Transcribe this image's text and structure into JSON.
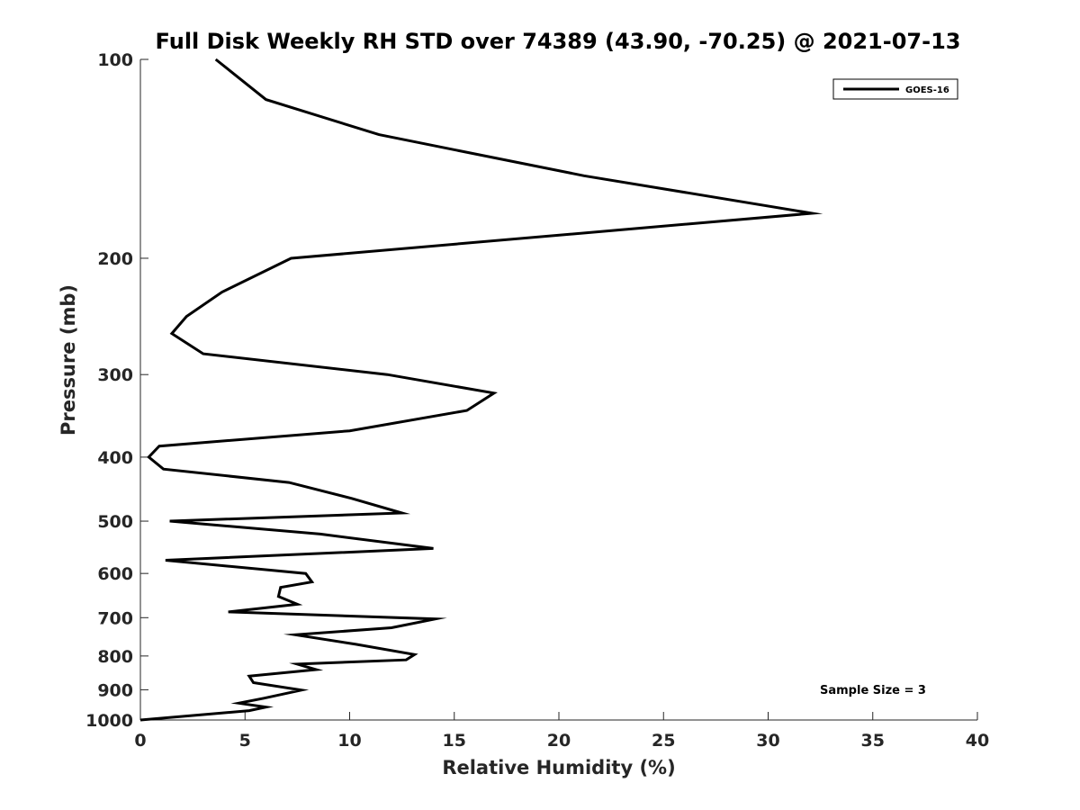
{
  "chart_data": {
    "type": "line",
    "title": "Full Disk Weekly RH STD over 74389 (43.90, -70.25) @ 2021-07-13",
    "xlabel": "Relative Humidity (%)",
    "ylabel": "Pressure (mb)",
    "xlim": [
      0,
      40
    ],
    "ylim": [
      100,
      1000
    ],
    "yscale": "log",
    "yreversed": true,
    "xticks": [
      0,
      5,
      10,
      15,
      20,
      25,
      30,
      35,
      40
    ],
    "yticks": [
      100,
      200,
      300,
      400,
      500,
      600,
      700,
      800,
      900,
      1000
    ],
    "grid": false,
    "legend": {
      "entries": [
        "GOES-16"
      ],
      "location": "top-right"
    },
    "annotation": "Sample Size = 3",
    "series": [
      {
        "name": "GOES-16",
        "color": "#000000",
        "x": [
          3.6,
          6.0,
          11.4,
          21.2,
          32.1,
          7.2,
          3.9,
          2.2,
          1.5,
          3.0,
          11.8,
          16.9,
          15.6,
          10.0,
          0.9,
          0.4,
          1.1,
          7.1,
          10.1,
          12.5,
          1.4,
          8.6,
          14.0,
          1.2,
          7.9,
          8.2,
          6.7,
          6.6,
          7.5,
          4.2,
          14.1,
          12.0,
          7.4,
          10.3,
          13.1,
          12.7,
          7.5,
          8.4,
          5.2,
          5.4,
          7.7,
          5.9,
          4.7,
          6.0,
          5.2,
          0.0
        ],
        "y": [
          100,
          115,
          130,
          150,
          171,
          200,
          225,
          245,
          260,
          279,
          300,
          320,
          340,
          365,
          385,
          400,
          417,
          437,
          462,
          486,
          500,
          523,
          550,
          573,
          600,
          618,
          630,
          650,
          668,
          686,
          703,
          725,
          743,
          768,
          796,
          811,
          823,
          839,
          858,
          878,
          901,
          927,
          943,
          956,
          968,
          1000
        ]
      }
    ]
  }
}
